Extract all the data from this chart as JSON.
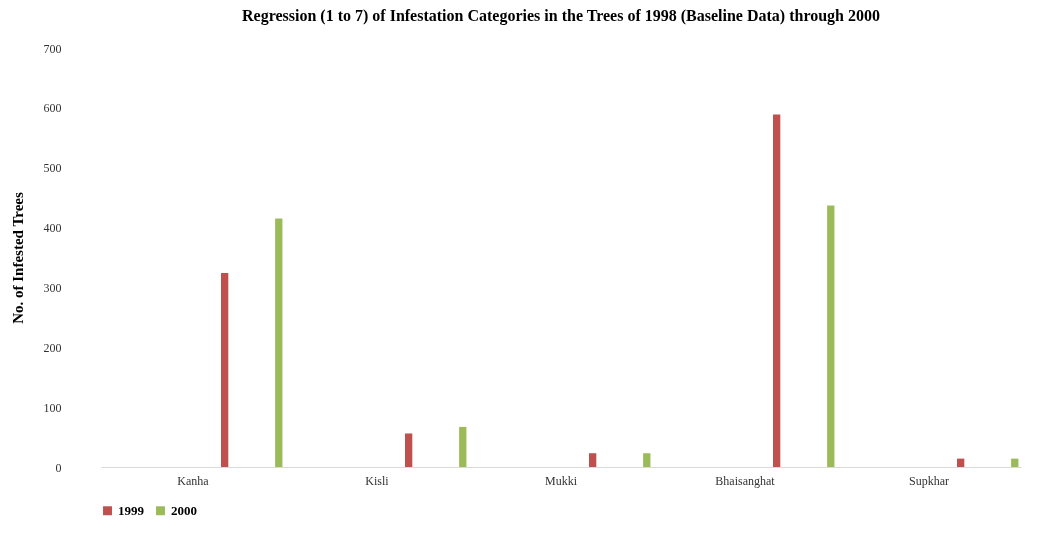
{
  "chart_data": {
    "type": "bar",
    "title": "Regression (1 to 7) of Infestation Categories in the Trees of 1998 (Baseline Data) through 2000",
    "ylabel": "No. of Infested Trees",
    "categories": [
      "Kanha",
      "Kisli",
      "Mukki",
      "Bhaisanghat",
      "Supkhar"
    ],
    "series": [
      {
        "name": "1999",
        "color": "#c0504d",
        "values": [
          324,
          56,
          23,
          589,
          14
        ]
      },
      {
        "name": "2000",
        "color": "#9bbb59",
        "values": [
          415,
          67,
          23,
          437,
          14
        ]
      }
    ],
    "ylim": [
      0,
      700
    ],
    "yticks": [
      0,
      100,
      200,
      300,
      400,
      500,
      600,
      700
    ],
    "grid": false,
    "legend": "bottom"
  }
}
